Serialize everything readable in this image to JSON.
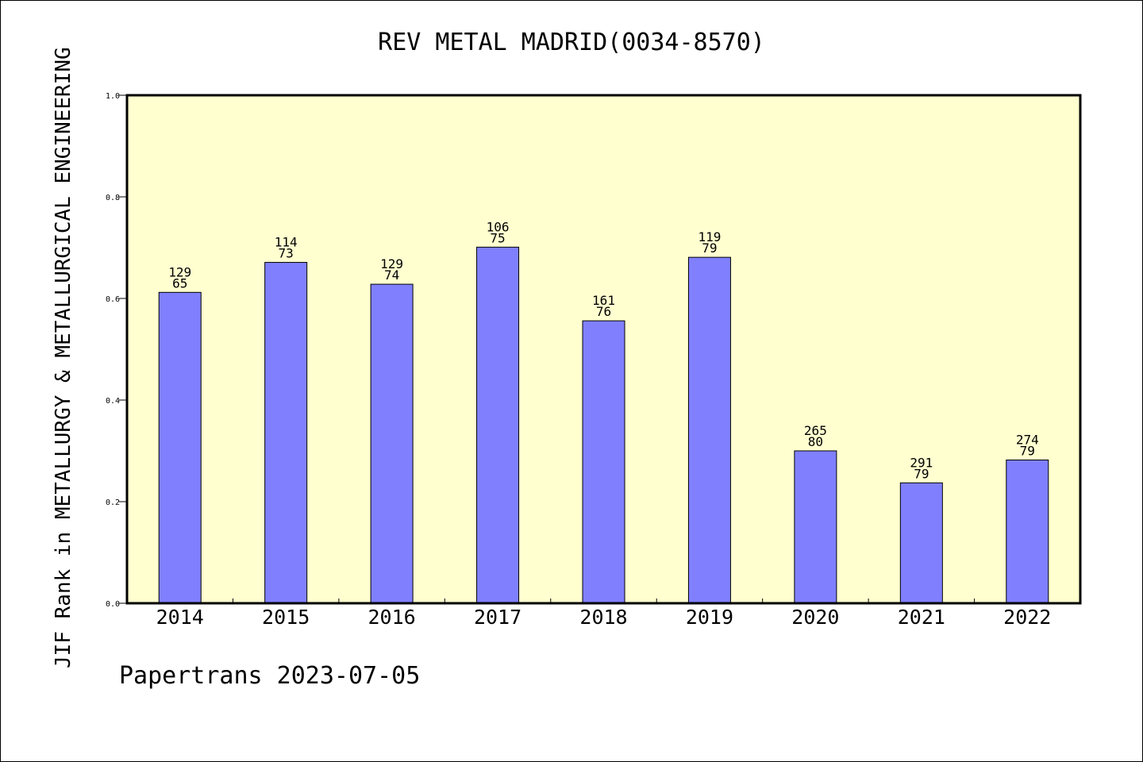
{
  "chart_data": {
    "type": "bar",
    "title": "REV METAL MADRID(0034-8570)",
    "ylabel": "JIF Rank in METALLURGY & METALLURGICAL ENGINEERING",
    "xlabel": "",
    "categories": [
      "2014",
      "2015",
      "2016",
      "2017",
      "2018",
      "2019",
      "2020",
      "2021",
      "2022"
    ],
    "values": [
      0.612,
      0.671,
      0.628,
      0.701,
      0.556,
      0.681,
      0.3,
      0.237,
      0.282
    ],
    "labels_top": [
      "129",
      "114",
      "129",
      "106",
      "161",
      "119",
      "265",
      "291",
      "274"
    ],
    "labels_bottom": [
      "65",
      "73",
      "74",
      "75",
      "76",
      "79",
      "80",
      "79",
      "79"
    ],
    "ylim": [
      0,
      1.0
    ],
    "yticks": [
      "0.0",
      "0.2",
      "0.4",
      "0.6",
      "0.8",
      "1.0"
    ],
    "grid": false,
    "legend": "none",
    "colors": {
      "plot_bg": "#ffffd0",
      "bar": "#8080ff",
      "bar_edge": "#000000"
    }
  },
  "footer": "Papertrans 2023-07-05"
}
